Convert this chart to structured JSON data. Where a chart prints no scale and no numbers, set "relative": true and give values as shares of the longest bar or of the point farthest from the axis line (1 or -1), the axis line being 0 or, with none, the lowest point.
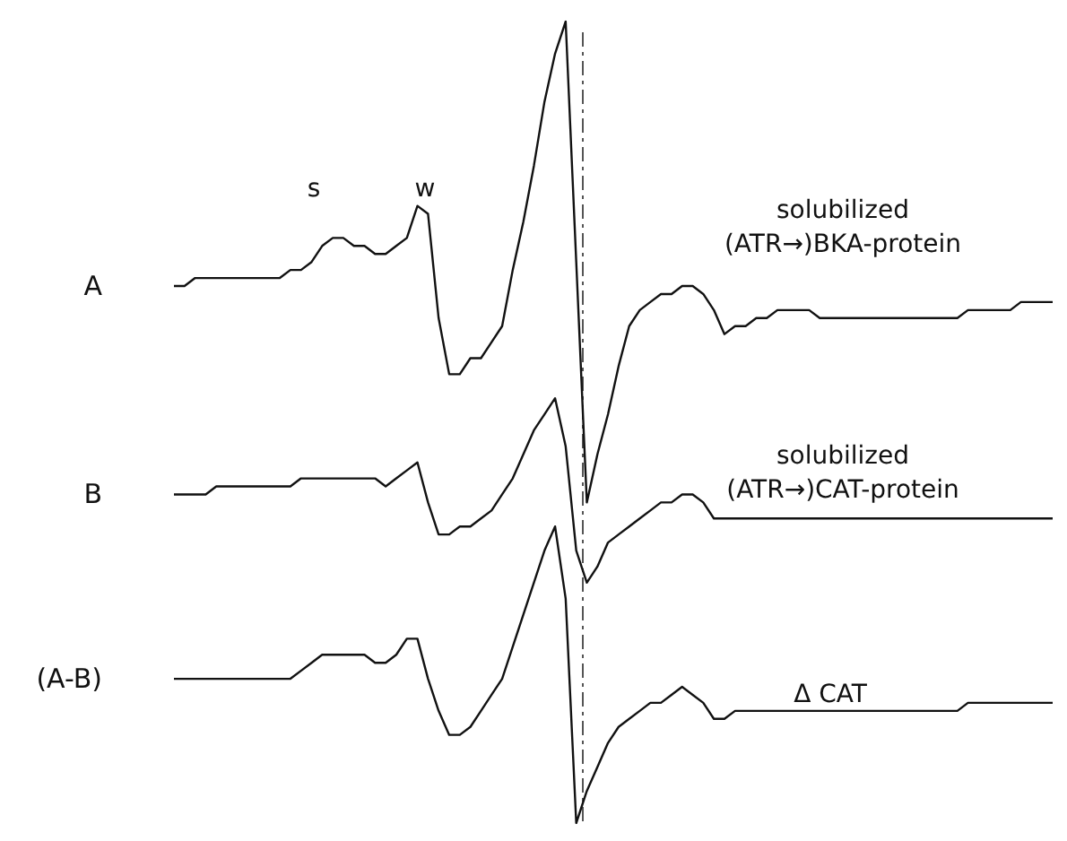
{
  "chart_data": {
    "type": "line",
    "relative": true,
    "legend": false,
    "marker": "none",
    "categories": [
      null,
      null,
      null,
      null,
      null,
      null,
      null,
      null,
      null,
      null,
      null,
      null,
      null,
      null,
      null,
      null,
      null,
      null,
      null,
      null,
      null,
      null,
      null,
      null,
      null,
      null,
      null,
      null,
      null,
      null,
      null,
      null,
      null,
      null,
      null,
      null,
      null,
      null,
      null,
      null,
      null,
      null,
      null,
      null,
      null,
      null,
      null,
      null,
      null,
      null,
      null,
      null,
      null,
      null,
      null,
      null,
      null,
      null,
      null,
      null,
      null,
      null,
      null,
      null,
      null,
      null,
      null,
      null,
      null,
      null,
      null,
      null,
      null,
      null,
      null,
      null,
      null,
      null,
      null,
      null,
      null,
      null,
      null,
      null
    ],
    "series": [
      {
        "name": "A",
        "color": "#111111",
        "values": [
          0.67,
          0.67,
          0.68,
          0.68,
          0.68,
          0.68,
          0.68,
          0.68,
          0.68,
          0.68,
          0.68,
          0.69,
          0.69,
          0.7,
          0.72,
          0.73,
          0.73,
          0.72,
          0.72,
          0.71,
          0.71,
          0.72,
          0.73,
          0.77,
          0.76,
          0.63,
          0.56,
          0.56,
          0.58,
          0.58,
          0.6,
          0.62,
          0.69,
          0.75,
          0.82,
          0.9,
          0.96,
          1,
          0.7,
          0.4,
          0.46,
          0.51,
          0.57,
          0.62,
          0.64,
          0.65,
          0.66,
          0.66,
          0.67,
          0.67,
          0.66,
          0.64,
          0.61,
          0.62,
          0.62,
          0.63,
          0.63,
          0.64,
          0.64,
          0.64,
          0.64,
          0.63,
          0.63,
          0.63,
          0.63,
          0.63,
          0.63,
          0.63,
          0.63,
          0.63,
          0.63,
          0.63,
          0.63,
          0.63,
          0.63,
          0.64,
          0.64,
          0.64,
          0.64,
          0.64,
          0.65,
          0.65,
          0.65,
          0.65
        ]
      },
      {
        "name": "B",
        "color": "#111111",
        "values": [
          0.41,
          0.41,
          0.41,
          0.41,
          0.42,
          0.42,
          0.42,
          0.42,
          0.42,
          0.42,
          0.42,
          0.42,
          0.43,
          0.43,
          0.43,
          0.43,
          0.43,
          0.43,
          0.43,
          0.43,
          0.42,
          0.43,
          0.44,
          0.45,
          0.4,
          0.36,
          0.36,
          0.37,
          0.37,
          0.38,
          0.39,
          0.41,
          0.43,
          0.46,
          0.49,
          0.51,
          0.53,
          0.47,
          0.34,
          0.3,
          0.32,
          0.35,
          0.36,
          0.37,
          0.38,
          0.39,
          0.4,
          0.4,
          0.41,
          0.41,
          0.4,
          0.38,
          0.38,
          0.38,
          0.38,
          0.38,
          0.38,
          0.38,
          0.38,
          0.38,
          0.38,
          0.38,
          0.38,
          0.38,
          0.38,
          0.38,
          0.38,
          0.38,
          0.38,
          0.38,
          0.38,
          0.38,
          0.38,
          0.38,
          0.38,
          0.38,
          0.38,
          0.38,
          0.38,
          0.38,
          0.38,
          0.38,
          0.38,
          0.38
        ]
      },
      {
        "name": "(A-B)",
        "color": "#111111",
        "values": [
          0.18,
          0.18,
          0.18,
          0.18,
          0.18,
          0.18,
          0.18,
          0.18,
          0.18,
          0.18,
          0.18,
          0.18,
          0.19,
          0.2,
          0.21,
          0.21,
          0.21,
          0.21,
          0.21,
          0.2,
          0.2,
          0.21,
          0.23,
          0.23,
          0.18,
          0.14,
          0.11,
          0.11,
          0.12,
          0.14,
          0.16,
          0.18,
          0.22,
          0.26,
          0.3,
          0.34,
          0.37,
          0.28,
          0,
          0.04,
          0.07,
          0.1,
          0.12,
          0.13,
          0.14,
          0.15,
          0.15,
          0.16,
          0.17,
          0.16,
          0.15,
          0.13,
          0.13,
          0.14,
          0.14,
          0.14,
          0.14,
          0.14,
          0.14,
          0.14,
          0.14,
          0.14,
          0.14,
          0.14,
          0.14,
          0.14,
          0.14,
          0.14,
          0.14,
          0.14,
          0.14,
          0.14,
          0.14,
          0.14,
          0.14,
          0.15,
          0.15,
          0.15,
          0.15,
          0.15,
          0.15,
          0.15,
          0.15,
          0.15
        ]
      }
    ],
    "annotations": [
      "s",
      "w",
      "solubilized\n(ATR→)BKA-protein",
      "solubilized\n(ATR→)CAT-protein",
      "Δ CAT"
    ]
  }
}
